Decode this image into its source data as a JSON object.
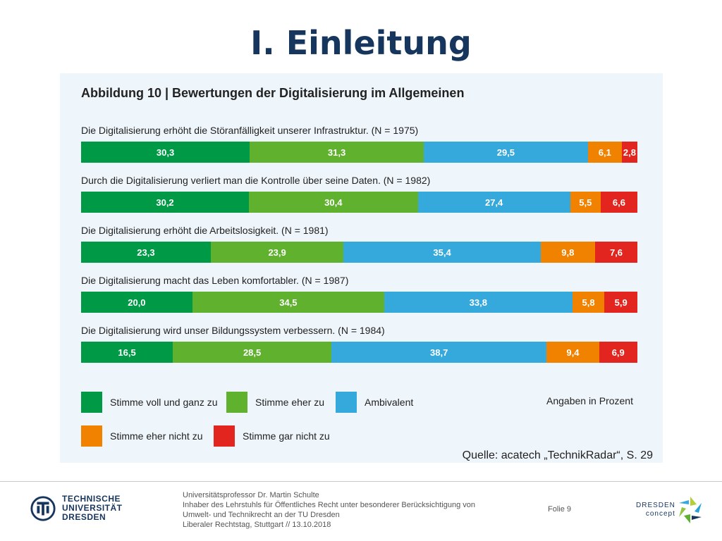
{
  "slide": {
    "title": "I. Einleitung"
  },
  "figure": {
    "title": "Abbildung 10 | Bewertungen der Digitalisierung im Allgemeinen",
    "unit_note": "Angaben in Prozent",
    "source": "Quelle: acatech „TechnikRadar“, S. 29"
  },
  "colors": {
    "Stimme voll und ganz zu": "#009a46",
    "Stimme eher zu": "#5fb12e",
    "Ambivalent": "#36a9dc",
    "Stimme eher nicht zu": "#f08200",
    "Stimme gar nicht zu": "#e2261f",
    "panel_background": "#eef5fb",
    "title": "#17365d"
  },
  "chart_data": {
    "type": "bar",
    "stacked": true,
    "orientation": "horizontal",
    "unit": "Prozent",
    "categories": [
      "Die Digitalisierung erhöht die Störanfälligkeit unserer Infrastruktur. (N = 1975)",
      "Durch die Digitalisierung verliert man die Kontrolle über seine Daten. (N = 1982)",
      "Die Digitalisierung erhöht die Arbeitslosigkeit. (N = 1981)",
      "Die Digitalisierung macht das Leben komfortabler. (N = 1987)",
      "Die Digitalisierung wird unser Bildungssystem verbessern. (N = 1984)"
    ],
    "series": [
      {
        "name": "Stimme voll und ganz zu",
        "values": [
          30.3,
          30.2,
          23.3,
          20.0,
          16.5
        ],
        "labels": [
          "30,3",
          "30,2",
          "23,3",
          "20,0",
          "16,5"
        ]
      },
      {
        "name": "Stimme eher zu",
        "values": [
          31.3,
          30.4,
          23.9,
          34.5,
          28.5
        ],
        "labels": [
          "31,3",
          "30,4",
          "23,9",
          "34,5",
          "28,5"
        ]
      },
      {
        "name": "Ambivalent",
        "values": [
          29.5,
          27.4,
          35.4,
          33.8,
          38.7
        ],
        "labels": [
          "29,5",
          "27,4",
          "35,4",
          "33,8",
          "38,7"
        ]
      },
      {
        "name": "Stimme eher nicht zu",
        "values": [
          6.1,
          5.5,
          9.8,
          5.8,
          9.4
        ],
        "labels": [
          "6,1",
          "5,5",
          "9,8",
          "5,8",
          "9,4"
        ]
      },
      {
        "name": "Stimme gar nicht zu",
        "values": [
          2.8,
          6.6,
          7.6,
          5.9,
          6.9
        ],
        "labels": [
          "2,8",
          "6,6",
          "7,6",
          "5,9",
          "6,9"
        ]
      }
    ],
    "legend_placement": "bottom"
  },
  "footer": {
    "university_lines": [
      "TECHNISCHE",
      "UNIVERSITÄT",
      "DRESDEN"
    ],
    "presenter_lines": [
      "Universitätsprofessor Dr. Martin Schulte",
      "Inhaber des Lehrstuhls für Öffentliches Recht unter besonderer Berücksichtigung von",
      "Umwelt- und Technikrecht an der TU Dresden",
      "Liberaler Rechtstag, Stuttgart // 13.10.2018"
    ],
    "slide_number": "Folie 9",
    "partner_logo_lines": [
      "DRESDEN",
      "concept"
    ]
  }
}
